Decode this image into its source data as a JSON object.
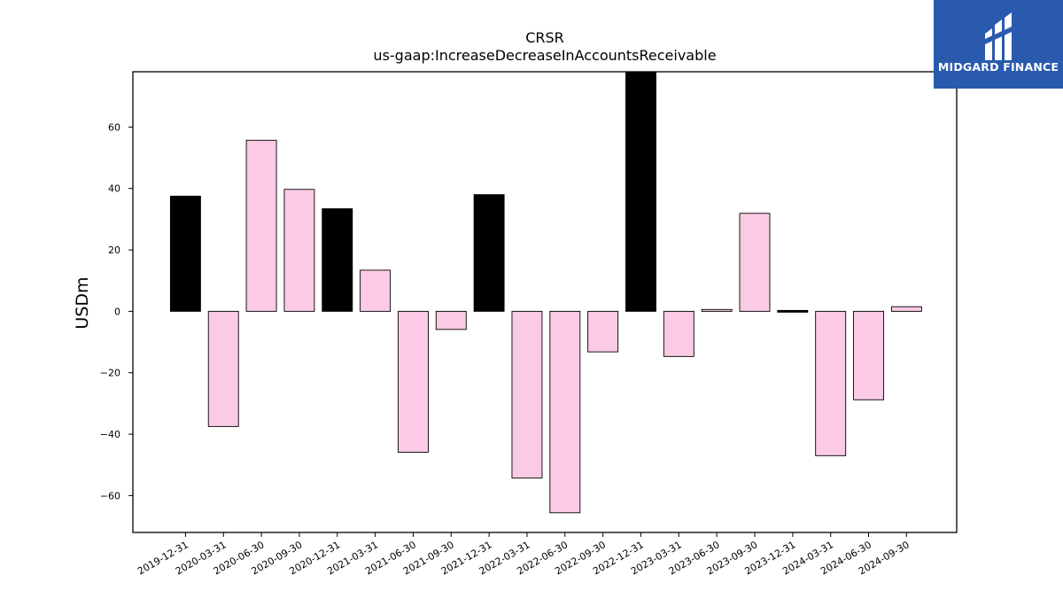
{
  "chart_data": {
    "type": "bar",
    "title": "CRSR",
    "subtitle": "us-gaap:IncreaseDecreaseInAccountsReceivable",
    "xlabel": "",
    "ylabel": "USDm",
    "ylim": [
      -72,
      78
    ],
    "yticks": [
      -60,
      -40,
      -20,
      0,
      20,
      40,
      60
    ],
    "ytick_labels": [
      "−60",
      "−40",
      "−20",
      "0",
      "20",
      "40",
      "60"
    ],
    "categories": [
      "2019-12-31",
      "2020-03-31",
      "2020-06-30",
      "2020-09-30",
      "2020-12-31",
      "2021-03-31",
      "2021-06-30",
      "2021-09-30",
      "2021-12-31",
      "2022-03-31",
      "2022-06-30",
      "2022-09-30",
      "2022-12-31",
      "2023-03-31",
      "2023-06-30",
      "2023-09-30",
      "2023-12-31",
      "2024-03-31",
      "2024-06-30",
      "2024-09-30"
    ],
    "values": [
      37.5,
      -37.5,
      55.7,
      39.7,
      33.4,
      13.4,
      -45.9,
      -5.9,
      38.0,
      -54.3,
      -65.6,
      -13.2,
      79.0,
      -14.7,
      0.6,
      31.9,
      -0.4,
      -47.0,
      -28.8,
      1.5
    ],
    "bar_colors": [
      "#000000",
      "#fbcae4",
      "#fbcae4",
      "#fbcae4",
      "#000000",
      "#fbcae4",
      "#fbcae4",
      "#fbcae4",
      "#000000",
      "#fbcae4",
      "#fbcae4",
      "#fbcae4",
      "#000000",
      "#fbcae4",
      "#fbcae4",
      "#fbcae4",
      "#000000",
      "#fbcae4",
      "#fbcae4",
      "#fbcae4"
    ],
    "grid": false,
    "legend": "none"
  },
  "logo": {
    "text": "MIDGARD FINANCE",
    "background": "#2a5aad"
  }
}
